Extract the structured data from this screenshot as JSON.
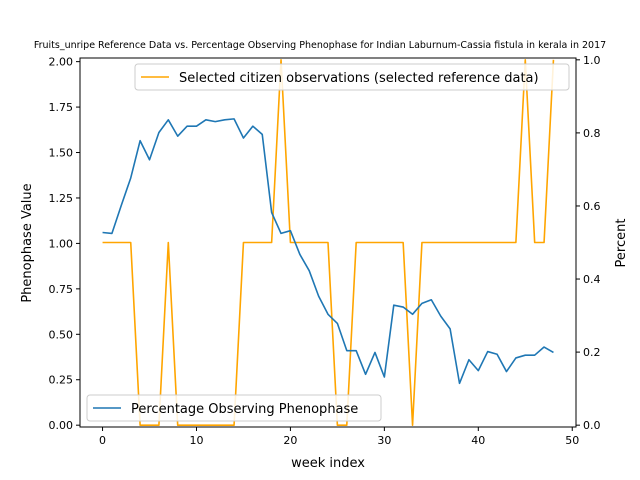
{
  "chart_data": {
    "type": "line",
    "title": "Fruits_unripe Reference Data vs. Percentage Observing Phenophase for Indian Laburnum-Cassia fistula in kerala in 2017",
    "xlabel": "week index",
    "ylabel_left": "Phenophase Value",
    "ylabel_right": "Percent",
    "xlim": [
      -2.4,
      50.4
    ],
    "ylim_left": [
      -0.01,
      2.02
    ],
    "ylim_right": [
      -0.005,
      1.005
    ],
    "x_ticks": [
      "0",
      "10",
      "20",
      "30",
      "40",
      "50"
    ],
    "y_left_ticks": [
      "0.00",
      "0.25",
      "0.50",
      "0.75",
      "1.00",
      "1.25",
      "1.50",
      "1.75",
      "2.00"
    ],
    "y_right_ticks": [
      "0.0",
      "0.2",
      "0.4",
      "0.6",
      "0.8",
      "1.0"
    ],
    "grid": false,
    "series": [
      {
        "name": "Percentage Observing Phenophase",
        "axis": "left",
        "color": "#1f77b4",
        "x": [
          0,
          1,
          2,
          3,
          4,
          5,
          6,
          7,
          8,
          9,
          10,
          11,
          12,
          13,
          14,
          15,
          16,
          17,
          18,
          19,
          20,
          21,
          22,
          23,
          24,
          25,
          26,
          27,
          28,
          29,
          30,
          31,
          32,
          33,
          34,
          35,
          36,
          37,
          38,
          39,
          40,
          41,
          42,
          43,
          44,
          45,
          46,
          47,
          48
        ],
        "y": [
          1.06,
          1.055,
          1.21,
          1.36,
          1.565,
          1.46,
          1.61,
          1.68,
          1.59,
          1.645,
          1.645,
          1.68,
          1.67,
          1.68,
          1.685,
          1.58,
          1.645,
          1.6,
          1.17,
          1.055,
          1.07,
          0.94,
          0.85,
          0.71,
          0.61,
          0.56,
          0.41,
          0.41,
          0.28,
          0.4,
          0.265,
          0.66,
          0.65,
          0.61,
          0.67,
          0.69,
          0.6,
          0.53,
          0.23,
          0.36,
          0.3,
          0.405,
          0.39,
          0.295,
          0.37,
          0.385,
          0.385,
          0.43,
          0.4
        ],
        "legend_location": "lower-left"
      },
      {
        "name": "Selected citizen observations (selected reference data)",
        "axis": "right",
        "color": "#ffa500",
        "x": [
          0,
          1,
          2,
          3,
          4,
          5,
          6,
          7,
          8,
          9,
          10,
          11,
          12,
          13,
          14,
          15,
          16,
          17,
          18,
          19,
          20,
          21,
          22,
          23,
          24,
          25,
          26,
          27,
          28,
          29,
          30,
          31,
          32,
          33,
          34,
          35,
          36,
          37,
          38,
          39,
          40,
          41,
          42,
          43,
          44,
          45,
          46,
          47,
          48
        ],
        "y": [
          0.5,
          0.5,
          0.5,
          0.5,
          0,
          0,
          0,
          0.5,
          0,
          0,
          0,
          0,
          0,
          0,
          0,
          0.5,
          0.5,
          0.5,
          0.5,
          1,
          0.5,
          0.5,
          0.5,
          0.5,
          0.5,
          0,
          0,
          0.5,
          0.5,
          0.5,
          0.5,
          0.5,
          0.5,
          0,
          0.5,
          0.5,
          0.5,
          0.5,
          0.5,
          0.5,
          0.5,
          0.5,
          0.5,
          0.5,
          0.5,
          1,
          0.5,
          0.5,
          1
        ],
        "legend_location": "upper-right"
      }
    ]
  }
}
